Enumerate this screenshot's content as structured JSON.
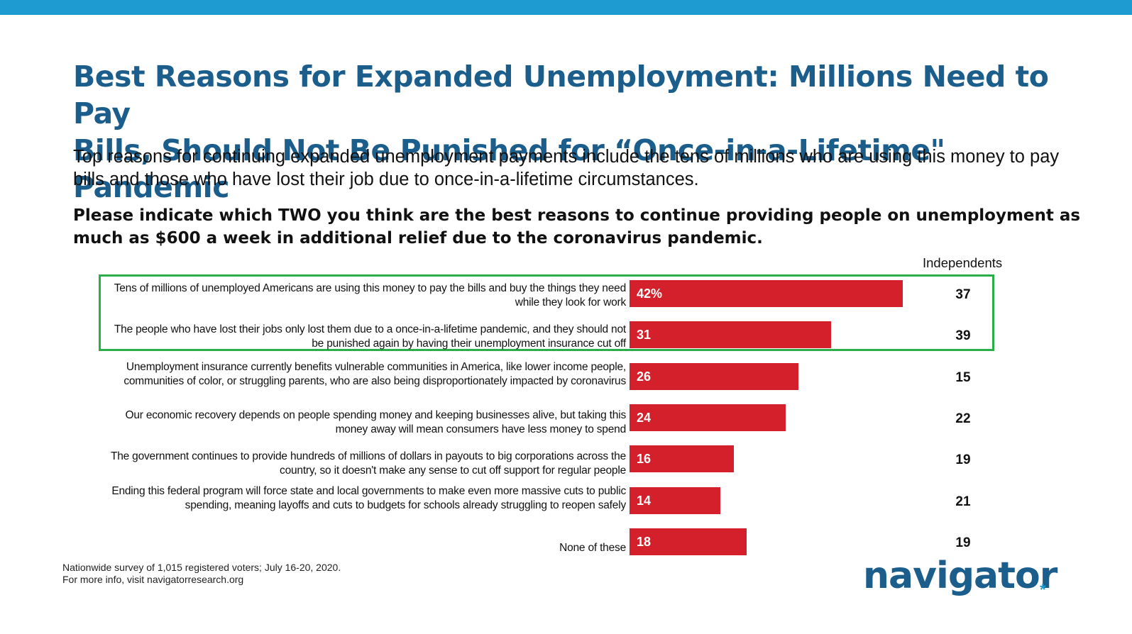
{
  "title_line1": "Best Reasons for Expanded Unemployment: Millions Need to Pay",
  "title_line2": "Bills, Should Not Be Punished for “Once-in-a-Lifetime\" Pandemic",
  "subtitle": "Top reasons for continuing expanded unemployment payments include the tens of millions who are using this money to pay bills and those who have lost their job due to once-in-a-lifetime circumstances.",
  "question": "Please indicate which TWO you think are the best reasons to continue providing people on unemployment as much as $600 a week in additional relief due to the coronavirus pandemic.",
  "footnote_line1": "Nationwide survey of 1,015 registered voters; July 16-20, 2020.",
  "footnote_line2": "For more info, visit navigatorresearch.org",
  "logo_text": "navigator",
  "logo_mark": "*",
  "colors": {
    "bar": "#d4202a",
    "title": "#1b5e8c",
    "top_bar": "#1e9bd0",
    "highlight": "#2bad4a"
  },
  "chart_data": {
    "type": "bar",
    "orientation": "horizontal",
    "xlim": [
      0,
      60
    ],
    "column_header": "Independents",
    "categories": [
      "Tens of millions of unemployed Americans are using this money to pay the bills and buy the things they need while they look for work",
      "The people who have lost their jobs only lost them due to a once-in-a-lifetime pandemic, and they should not be punished again by having their unemployment insurance cut off",
      "Unemployment insurance currently benefits vulnerable communities in America, like lower income people, communities of color, or struggling parents, who are also being disproportionately impacted by coronavirus",
      "Our economic recovery depends on people spending money and keeping businesses alive, but taking this money away will mean consumers have less money to spend",
      "The government continues to provide hundreds of millions of dollars in payouts to big corporations across the country, so it doesn't make any sense to cut off support for regular people",
      "Ending this federal program will force state and local governments to make even more massive cuts to public spending, meaning layoffs and cuts to budgets for schools already struggling to reopen safely",
      "None of these"
    ],
    "values": [
      42,
      31,
      26,
      24,
      16,
      14,
      18
    ],
    "value_labels": [
      "42%",
      "31",
      "26",
      "24",
      "16",
      "14",
      "18"
    ],
    "independents": [
      "37",
      "39",
      "15",
      "22",
      "19",
      "21",
      "19"
    ],
    "highlighted_rows": [
      0,
      1
    ]
  }
}
